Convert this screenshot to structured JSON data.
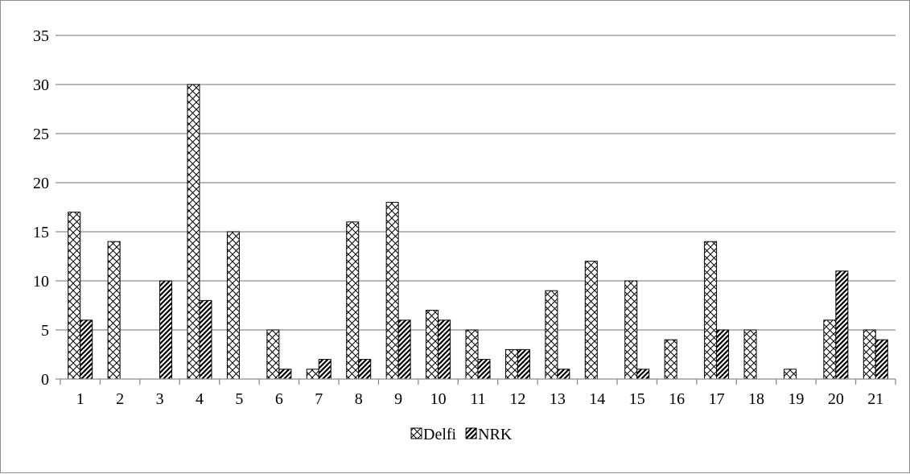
{
  "chart_data": {
    "type": "bar",
    "categories": [
      "1",
      "2",
      "3",
      "4",
      "5",
      "6",
      "7",
      "8",
      "9",
      "10",
      "11",
      "12",
      "13",
      "14",
      "15",
      "16",
      "17",
      "18",
      "19",
      "20",
      "21"
    ],
    "series": [
      {
        "name": "Delfi",
        "values": [
          17,
          14,
          0,
          30,
          15,
          5,
          1,
          16,
          18,
          7,
          5,
          3,
          9,
          12,
          10,
          4,
          14,
          5,
          1,
          6,
          5
        ],
        "pattern": "crosshatch"
      },
      {
        "name": "NRK",
        "values": [
          6,
          0,
          10,
          8,
          0,
          1,
          2,
          2,
          6,
          6,
          2,
          3,
          1,
          0,
          1,
          0,
          5,
          0,
          0,
          11,
          4
        ],
        "pattern": "diagonal"
      }
    ],
    "y_ticks": [
      "0",
      "5",
      "10",
      "15",
      "20",
      "25",
      "30",
      "35"
    ],
    "ylim": [
      0,
      35
    ],
    "grid": true,
    "legend_position": "bottom-center",
    "colors": {
      "gridline": "#8c8c8c",
      "bar_stroke": "#000000",
      "bar_fill": "#ffffff"
    }
  }
}
